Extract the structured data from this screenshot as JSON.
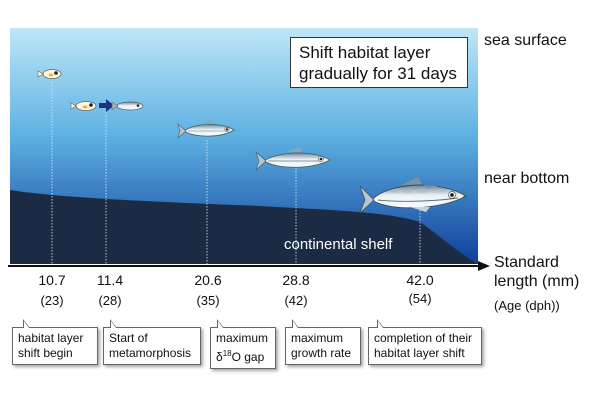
{
  "info_box": {
    "line1": "Shift habitat layer",
    "line2": "gradually for 31 days"
  },
  "depth_labels": {
    "surface": "sea surface",
    "bottom": "near bottom"
  },
  "shelf_label": "continental shelf",
  "axis": {
    "title_line1": "Standard",
    "title_line2": "length (mm)",
    "age_label": "(Age (dph))"
  },
  "stages": [
    {
      "length": "10.7",
      "age": "(23)",
      "event_line1": "habitat layer",
      "event_line2": "shift begin"
    },
    {
      "length": "11.4",
      "age": "(28)",
      "event_line1": "Start of",
      "event_line2": "metamorphosis"
    },
    {
      "length": "20.6",
      "age": "(35)",
      "event_line1": "maximum",
      "event_line2_prefix": "δ",
      "event_line2_sup": "18",
      "event_line2_suffix": "O gap"
    },
    {
      "length": "28.8",
      "age": "(42)",
      "event_line1": "maximum",
      "event_line2": "growth rate"
    },
    {
      "length": "42.0",
      "age": "(54)",
      "event_line1": "completion of their",
      "event_line2": "habitat layer shift"
    }
  ],
  "colors": {
    "ocean_top": "#bfe6f7",
    "ocean_mid": "#3e9ad6",
    "ocean_bottom": "#0f3f9a",
    "seafloor": "#1c2b44",
    "arrow": "#1a3480"
  },
  "icons": [
    "larva-fish-icon",
    "juvenile-fish-icon",
    "arrow-right-icon",
    "adult-fish-icon"
  ]
}
